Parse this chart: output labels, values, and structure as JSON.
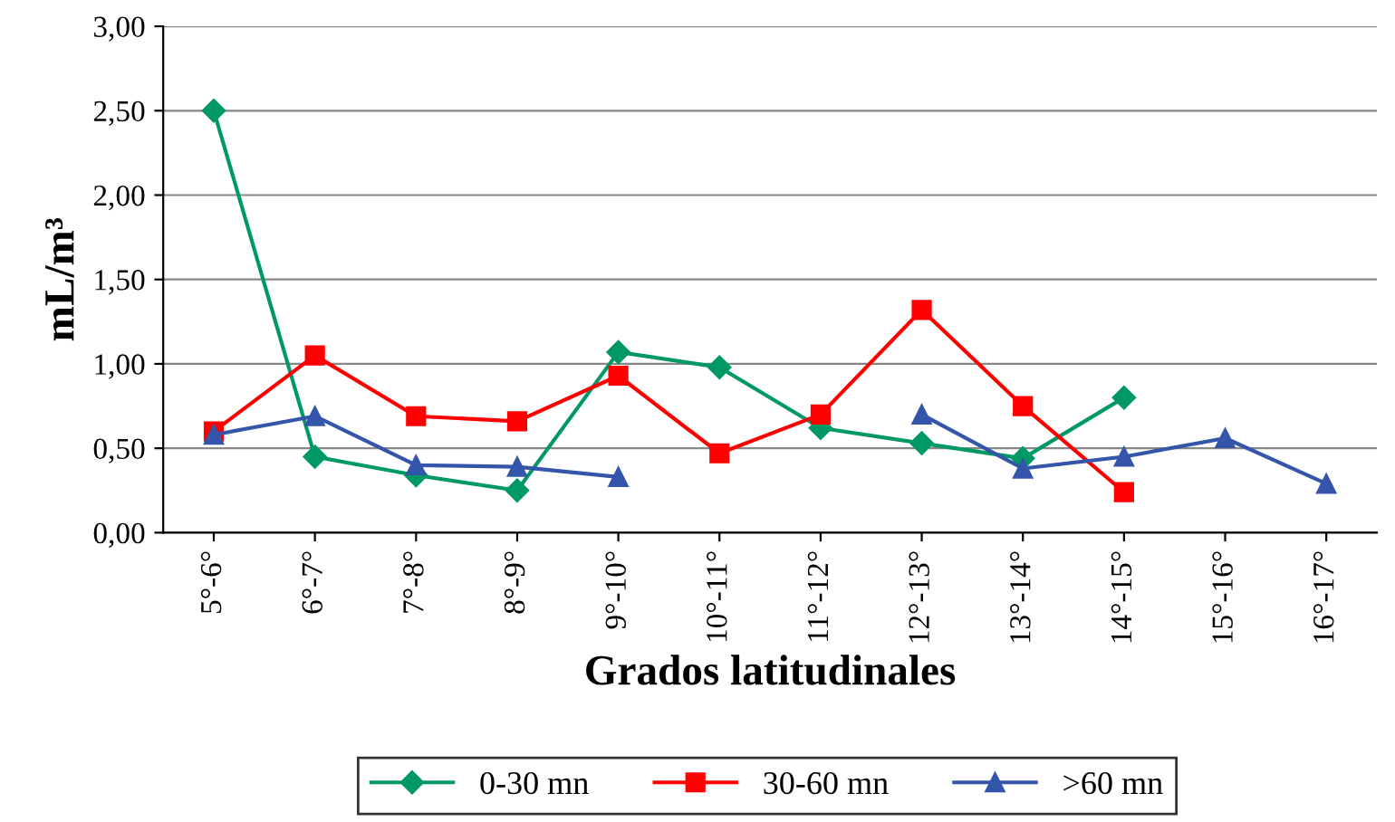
{
  "chart_data": {
    "type": "line",
    "xlabel": "Grados latitudinales",
    "ylabel": "mL/m³",
    "categories": [
      "5°-6°",
      "6°-7°",
      "7°-8°",
      "8°-9°",
      "9°-10°",
      "10°-11°",
      "11°-12°",
      "12°-13°",
      "13°-14°",
      "14°-15°",
      "15°-16°",
      "16°-17°"
    ],
    "series": [
      {
        "name": "0-30 mn",
        "color": "#009966",
        "marker": "diamond",
        "values": [
          2.5,
          0.45,
          0.34,
          0.25,
          1.07,
          0.98,
          0.62,
          0.53,
          0.44,
          0.8,
          null,
          null
        ]
      },
      {
        "name": "30-60 mn",
        "color": "#ff0000",
        "marker": "square",
        "values": [
          0.6,
          1.05,
          0.69,
          0.66,
          0.93,
          0.47,
          0.7,
          1.32,
          0.75,
          0.24,
          null,
          null
        ]
      },
      {
        "name": ">60 mn",
        "color": "#3355aa",
        "marker": "triangle",
        "values": [
          0.58,
          0.69,
          0.4,
          0.39,
          0.33,
          null,
          null,
          0.7,
          0.38,
          0.45,
          0.56,
          0.29
        ]
      }
    ],
    "ylim": [
      0,
      3
    ],
    "yticks": [
      {
        "value": 0,
        "label": "0,00"
      },
      {
        "value": 0.5,
        "label": "0,50"
      },
      {
        "value": 1,
        "label": "1,00"
      },
      {
        "value": 1.5,
        "label": "1,50"
      },
      {
        "value": 2,
        "label": "2,00"
      },
      {
        "value": 2.5,
        "label": "2,50"
      },
      {
        "value": 3,
        "label": "3,00"
      }
    ],
    "grid": "y",
    "legend": "bottom",
    "line_style": "solid"
  }
}
